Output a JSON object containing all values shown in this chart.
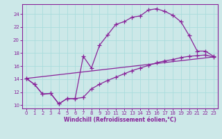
{
  "xlabel": "Windchill (Refroidissement éolien,°C)",
  "bg_color": "#cce8e8",
  "line_color": "#882299",
  "grid_color": "#aadddd",
  "x_ticks": [
    0,
    1,
    2,
    3,
    4,
    5,
    6,
    7,
    8,
    9,
    10,
    11,
    12,
    13,
    14,
    15,
    16,
    17,
    18,
    19,
    20,
    21,
    22,
    23
  ],
  "y_ticks": [
    10,
    12,
    14,
    16,
    18,
    20,
    22,
    24
  ],
  "xlim": [
    -0.5,
    23.5
  ],
  "ylim": [
    9.5,
    25.5
  ],
  "line1_x": [
    0,
    1,
    2,
    3,
    4,
    5,
    6,
    7,
    8,
    9,
    10,
    11,
    12,
    13,
    14,
    15,
    16,
    17,
    18,
    19,
    20,
    21,
    22,
    23
  ],
  "line1_y": [
    14.1,
    13.2,
    11.7,
    11.8,
    10.2,
    11.0,
    11.0,
    17.5,
    15.7,
    19.2,
    20.8,
    22.4,
    22.8,
    23.5,
    23.7,
    24.6,
    24.8,
    24.4,
    23.8,
    22.8,
    20.7,
    18.3,
    18.3,
    17.5
  ],
  "line2_x": [
    0,
    1,
    2,
    3,
    4,
    5,
    6,
    7,
    8,
    9,
    10,
    11,
    12,
    13,
    14,
    15,
    16,
    17,
    18,
    19,
    20,
    21,
    22,
    23
  ],
  "line2_y": [
    14.1,
    13.2,
    11.7,
    11.8,
    10.2,
    11.0,
    11.0,
    11.2,
    12.5,
    13.2,
    13.8,
    14.3,
    14.8,
    15.3,
    15.7,
    16.1,
    16.5,
    16.8,
    17.0,
    17.3,
    17.5,
    17.6,
    17.7,
    17.4
  ],
  "line3_x": [
    0,
    23
  ],
  "line3_y": [
    14.1,
    17.4
  ]
}
